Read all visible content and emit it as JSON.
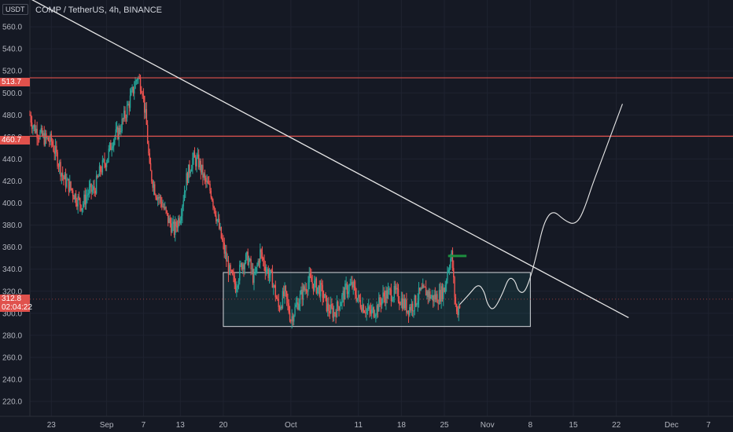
{
  "header": {
    "currency": "USDT",
    "title": "COMP / TetherUS, 4h, BINANCE"
  },
  "colors": {
    "background": "#151924",
    "up": "#26a69a",
    "down": "#ef5350",
    "level_line": "#e0514c",
    "trendline": "#e8e8e8",
    "range_box_border": "#d5d8dc",
    "range_box_fill": "#26a69a"
  },
  "chart_data": {
    "type": "candlestick",
    "title": "COMP / TetherUS, 4h, BINANCE",
    "y_axis": {
      "ticks": [
        220,
        240,
        260,
        280,
        300,
        320,
        340,
        360,
        380,
        400,
        420,
        440,
        460,
        480,
        500,
        520,
        540,
        560
      ],
      "tick_labels": [
        "220.0",
        "240.0",
        "260.0",
        "280.0",
        "300.0",
        "320.0",
        "340.0",
        "360.0",
        "380.0",
        "400.0",
        "420.0",
        "440.0",
        "460.0",
        "480.0",
        "500.0",
        "520.0",
        "540.0",
        "560.0"
      ],
      "range": [
        206.5,
        584.3
      ]
    },
    "x_axis": {
      "tick_labels": [
        "23",
        "Sep",
        "7",
        "13",
        "20",
        "Oct",
        "11",
        "18",
        "25",
        "Nov",
        "8",
        "15",
        "22",
        "Dec",
        "7"
      ],
      "tick_days": [
        -9,
        0,
        6,
        12,
        19,
        30,
        41,
        48,
        55,
        62,
        69,
        76,
        83,
        92,
        98
      ],
      "range_days": [
        -12.5,
        102
      ]
    },
    "price_levels": [
      {
        "label": "513.7",
        "value": 513.7
      },
      {
        "label": "460.7",
        "value": 460.7
      }
    ],
    "last_price": {
      "label": "312.8",
      "countdown": "02:04:22",
      "value": 312.8
    },
    "trendline": {
      "from": {
        "day": -12.3,
        "price": 585
      },
      "to": {
        "day": 85,
        "price": 296
      }
    },
    "range_box": {
      "from_day": 19,
      "to_day": 69,
      "low": 288,
      "high": 337
    },
    "projection": [
      [
        57.5,
        308
      ],
      [
        59,
        317
      ],
      [
        60.5,
        327
      ],
      [
        61.5,
        320
      ],
      [
        62,
        308
      ],
      [
        63,
        302
      ],
      [
        64.5,
        318
      ],
      [
        65.5,
        333
      ],
      [
        66.5,
        330
      ],
      [
        67,
        320
      ],
      [
        68,
        318
      ],
      [
        69,
        332
      ],
      [
        70,
        353
      ],
      [
        71,
        378
      ],
      [
        72,
        390
      ],
      [
        73,
        392
      ],
      [
        74,
        387
      ],
      [
        75,
        383
      ],
      [
        76,
        381
      ],
      [
        77,
        385
      ],
      [
        78,
        398
      ],
      [
        79,
        415
      ],
      [
        80,
        430
      ],
      [
        81,
        445
      ],
      [
        82,
        460
      ],
      [
        83,
        475
      ],
      [
        84,
        490
      ]
    ],
    "candles_anchors": [
      [
        -12.5,
        480
      ],
      [
        -12,
        470
      ],
      [
        -11,
        463
      ],
      [
        -10,
        458
      ],
      [
        -9,
        456
      ],
      [
        -8,
        440
      ],
      [
        -7,
        422
      ],
      [
        -6,
        415
      ],
      [
        -5,
        405
      ],
      [
        -4,
        398
      ],
      [
        -3,
        410
      ],
      [
        -2,
        412
      ],
      [
        -1,
        430
      ],
      [
        0,
        440
      ],
      [
        1,
        458
      ],
      [
        2,
        465
      ],
      [
        3,
        480
      ],
      [
        4,
        497
      ],
      [
        5,
        515
      ],
      [
        5.8,
        505
      ],
      [
        6.5,
        470
      ],
      [
        7,
        430
      ],
      [
        8,
        410
      ],
      [
        9,
        400
      ],
      [
        10,
        385
      ],
      [
        11,
        375
      ],
      [
        12,
        390
      ],
      [
        13,
        422
      ],
      [
        14,
        440
      ],
      [
        15,
        437
      ],
      [
        16,
        420
      ],
      [
        17,
        410
      ],
      [
        18,
        385
      ],
      [
        19,
        360
      ],
      [
        20,
        337
      ],
      [
        21,
        325
      ],
      [
        22,
        345
      ],
      [
        23,
        350
      ],
      [
        24,
        330
      ],
      [
        25,
        355
      ],
      [
        26,
        340
      ],
      [
        27,
        330
      ],
      [
        28,
        305
      ],
      [
        29,
        318
      ],
      [
        30,
        295
      ],
      [
        31,
        308
      ],
      [
        32,
        320
      ],
      [
        33,
        330
      ],
      [
        34,
        325
      ],
      [
        35,
        320
      ],
      [
        36,
        305
      ],
      [
        37,
        300
      ],
      [
        38,
        310
      ],
      [
        39,
        322
      ],
      [
        40,
        325
      ],
      [
        41,
        312
      ],
      [
        42,
        305
      ],
      [
        43,
        300
      ],
      [
        44,
        305
      ],
      [
        45,
        315
      ],
      [
        46,
        318
      ],
      [
        47,
        318
      ],
      [
        48,
        312
      ],
      [
        49,
        304
      ],
      [
        50,
        308
      ],
      [
        51,
        318
      ],
      [
        52,
        320
      ],
      [
        53,
        314
      ],
      [
        54,
        315
      ],
      [
        55,
        322
      ],
      [
        55.6,
        342
      ],
      [
        56.2,
        353
      ],
      [
        56.6,
        320
      ],
      [
        57,
        300
      ],
      [
        57.6,
        312
      ]
    ]
  }
}
